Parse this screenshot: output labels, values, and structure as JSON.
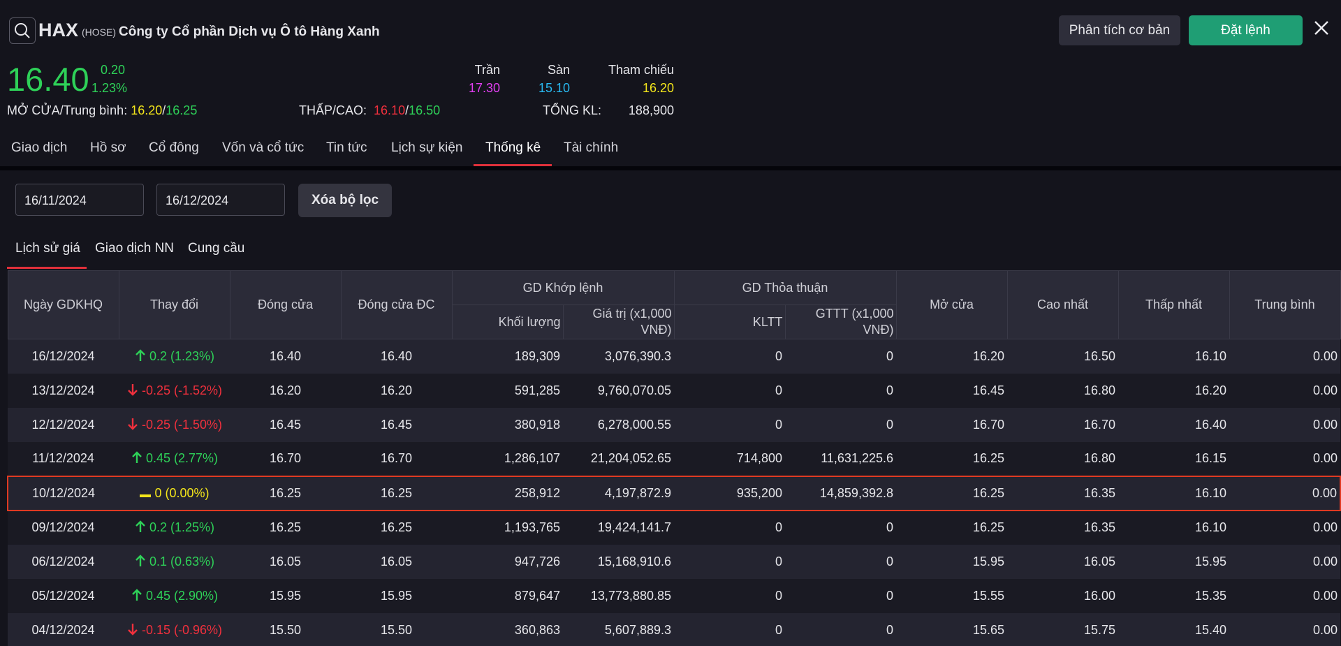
{
  "header": {
    "ticker": "HAX",
    "exchange": "(HOSE)",
    "company": "Công ty Cổ phần Dịch vụ Ô tô Hàng Xanh",
    "analysis_button": "Phân tích cơ bản",
    "order_button": "Đặt lệnh"
  },
  "quote": {
    "price": "16.40",
    "change": "0.20",
    "change_pct": "1.23%",
    "ceiling_label": "Trần",
    "ceiling": "17.30",
    "floor_label": "Sàn",
    "floor": "15.10",
    "ref_label": "Tham chiếu",
    "ref": "16.20",
    "open_avg_label": "MỞ CỬA/Trung bình:",
    "open": "16.20",
    "sep": "/",
    "avg": "16.25",
    "low_high_label": "THẤP/CAO:",
    "low": "16.10",
    "high": "16.50",
    "volume_label": "TỔNG KL:",
    "volume": "188,900"
  },
  "tabs": [
    "Giao dịch",
    "Hồ sơ",
    "Cổ đông",
    "Vốn và cổ tức",
    "Tin tức",
    "Lịch sự kiện",
    "Thống kê",
    "Tài chính"
  ],
  "filter": {
    "from": "16/11/2024",
    "to": "16/12/2024",
    "clear_button": "Xóa bộ lọc"
  },
  "sub_tabs": [
    "Lịch sử giá",
    "Giao dịch NN",
    "Cung cầu"
  ],
  "table": {
    "columns": {
      "date": "Ngày GDKHQ",
      "change": "Thay đổi",
      "close": "Đóng cửa",
      "close_adj": "Đóng cửa ĐC",
      "matched": "GD Khớp lệnh",
      "volume": "Khối lượng",
      "value": "Giá trị (x1,000 VNĐ)",
      "put_through": "GD Thỏa thuận",
      "pt_volume": "KLTT",
      "pt_value": "GTTT (x1,000 VNĐ)",
      "open": "Mở cửa",
      "high": "Cao nhất",
      "low": "Thấp nhất",
      "avg": "Trung bình"
    },
    "rows": [
      {
        "date": "16/12/2024",
        "trend": "up",
        "change": "0.2 (1.23%)",
        "close": "16.40",
        "close_adj": "16.40",
        "volume": "189,309",
        "value": "3,076,390.3",
        "pt_volume": "0",
        "pt_value": "0",
        "open": "16.20",
        "high": "16.50",
        "low": "16.10",
        "avg": "0.00"
      },
      {
        "date": "13/12/2024",
        "trend": "down",
        "change": "-0.25 (-1.52%)",
        "close": "16.20",
        "close_adj": "16.20",
        "volume": "591,285",
        "value": "9,760,070.05",
        "pt_volume": "0",
        "pt_value": "0",
        "open": "16.45",
        "high": "16.80",
        "low": "16.20",
        "avg": "0.00"
      },
      {
        "date": "12/12/2024",
        "trend": "down",
        "change": "-0.25 (-1.50%)",
        "close": "16.45",
        "close_adj": "16.45",
        "volume": "380,918",
        "value": "6,278,000.55",
        "pt_volume": "0",
        "pt_value": "0",
        "open": "16.70",
        "high": "16.70",
        "low": "16.40",
        "avg": "0.00"
      },
      {
        "date": "11/12/2024",
        "trend": "up",
        "change": "0.45 (2.77%)",
        "close": "16.70",
        "close_adj": "16.70",
        "volume": "1,286,107",
        "value": "21,204,052.65",
        "pt_volume": "714,800",
        "pt_value": "11,631,225.6",
        "open": "16.25",
        "high": "16.80",
        "low": "16.15",
        "avg": "0.00"
      },
      {
        "date": "10/12/2024",
        "trend": "flat",
        "change": "0 (0.00%)",
        "close": "16.25",
        "close_adj": "16.25",
        "volume": "258,912",
        "value": "4,197,872.9",
        "pt_volume": "935,200",
        "pt_value": "14,859,392.8",
        "open": "16.25",
        "high": "16.35",
        "low": "16.10",
        "avg": "0.00"
      },
      {
        "date": "09/12/2024",
        "trend": "up",
        "change": "0.2 (1.25%)",
        "close": "16.25",
        "close_adj": "16.25",
        "volume": "1,193,765",
        "value": "19,424,141.7",
        "pt_volume": "0",
        "pt_value": "0",
        "open": "16.25",
        "high": "16.35",
        "low": "16.10",
        "avg": "0.00"
      },
      {
        "date": "06/12/2024",
        "trend": "up",
        "change": "0.1 (0.63%)",
        "close": "16.05",
        "close_adj": "16.05",
        "volume": "947,726",
        "value": "15,168,910.6",
        "pt_volume": "0",
        "pt_value": "0",
        "open": "15.95",
        "high": "16.05",
        "low": "15.95",
        "avg": "0.00"
      },
      {
        "date": "05/12/2024",
        "trend": "up",
        "change": "0.45 (2.90%)",
        "close": "15.95",
        "close_adj": "15.95",
        "volume": "879,647",
        "value": "13,773,880.85",
        "pt_volume": "0",
        "pt_value": "0",
        "open": "15.55",
        "high": "16.00",
        "low": "15.35",
        "avg": "0.00"
      },
      {
        "date": "04/12/2024",
        "trend": "down",
        "change": "-0.15 (-0.96%)",
        "close": "15.50",
        "close_adj": "15.50",
        "volume": "360,863",
        "value": "5,607,889.3",
        "pt_volume": "0",
        "pt_value": "0",
        "open": "15.65",
        "high": "15.75",
        "low": "15.40",
        "avg": "0.00"
      }
    ]
  }
}
